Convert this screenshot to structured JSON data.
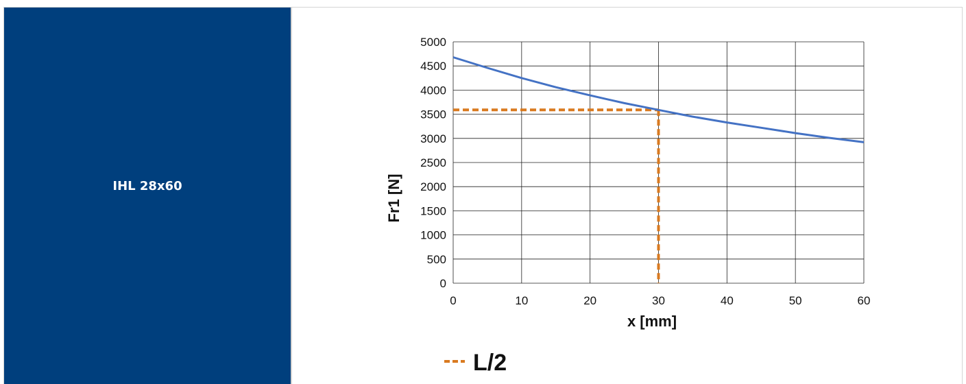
{
  "product": {
    "label": "IHL 28x60"
  },
  "chart_data": {
    "type": "line",
    "xlabel": "x [mm]",
    "ylabel": "Fr1 [N]",
    "xlim": [
      0,
      60
    ],
    "ylim": [
      0,
      5000
    ],
    "xticks": [
      0,
      10,
      20,
      30,
      40,
      50,
      60
    ],
    "yticks": [
      0,
      500,
      1000,
      1500,
      2000,
      2500,
      3000,
      3500,
      4000,
      4500,
      5000
    ],
    "grid": true,
    "series": [
      {
        "color": "#4472c4",
        "x": [
          0,
          5,
          10,
          15,
          20,
          25,
          30,
          35,
          40,
          45,
          50,
          55,
          60
        ],
        "y": [
          4680,
          4460,
          4250,
          4060,
          3890,
          3730,
          3590,
          3450,
          3330,
          3220,
          3110,
          3010,
          2920
        ]
      }
    ],
    "reference": {
      "name": "L/2",
      "color": "#d97a20",
      "x": 30,
      "y": 3590
    },
    "legend": {
      "position": "bottom-left",
      "entries": [
        "L/2"
      ]
    }
  }
}
